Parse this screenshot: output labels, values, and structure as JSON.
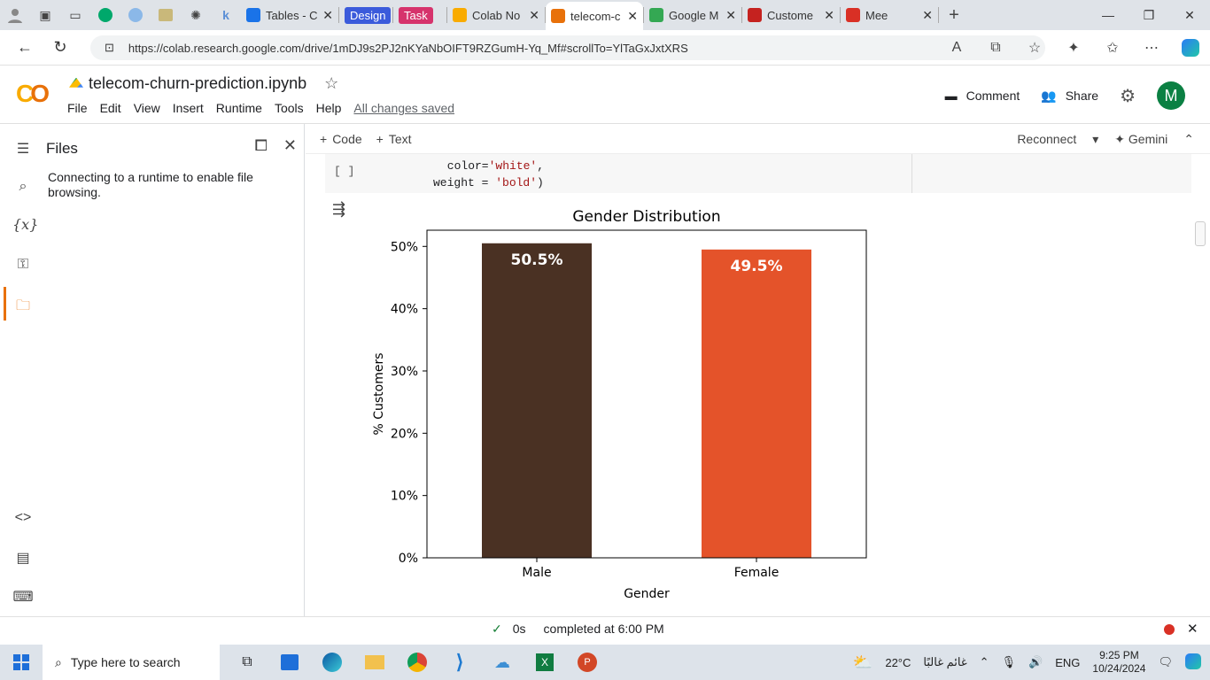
{
  "browser": {
    "tabs": [
      {
        "label": "Tables - C",
        "color": "#1a73e8"
      },
      {
        "label": "Design",
        "pill": true,
        "color": "#3b5bdb"
      },
      {
        "label": "Task",
        "pill": true,
        "color": "#d6336c"
      },
      {
        "label": "Colab No",
        "color": "#f9ab00"
      },
      {
        "label": "telecom-c",
        "color": "#e8710a",
        "active": true
      },
      {
        "label": "Google M",
        "color": "#34a853"
      },
      {
        "label": "Custome",
        "color": "#c5221f"
      },
      {
        "label": "Mee",
        "color": "#d93025"
      }
    ],
    "url": "https://colab.research.google.com/drive/1mDJ9s2PJ2nKYaNbOIFT9RZGumH-Yq_Mf#scrollTo=YlTaGxJxtXRS"
  },
  "colab": {
    "title": "telecom-churn-prediction.ipynb",
    "menu": [
      "File",
      "Edit",
      "View",
      "Insert",
      "Runtime",
      "Tools",
      "Help"
    ],
    "saved": "All changes saved",
    "comment": "Comment",
    "share": "Share",
    "avatar": "M",
    "add_code": "Code",
    "add_text": "Text",
    "reconnect": "Reconnect",
    "gemini": "Gemini"
  },
  "files_panel": {
    "title": "Files",
    "message": "Connecting to a runtime to enable file browsing."
  },
  "cell": {
    "bracket": "[ ]",
    "line1_a": " color=",
    "line1_s": "'white'",
    "line1_b": ",",
    "line2_a": "weight = ",
    "line2_s": "'bold'",
    "line2_b": ")"
  },
  "chart_data": {
    "type": "bar",
    "title": "Gender Distribution",
    "xlabel": "Gender",
    "ylabel": "% Customers",
    "categories": [
      "Male",
      "Female"
    ],
    "values": [
      50.5,
      49.5
    ],
    "labels": [
      "50.5%",
      "49.5%"
    ],
    "colors": [
      "#4a3123",
      "#e4532a"
    ],
    "yticks": [
      "0%",
      "10%",
      "20%",
      "30%",
      "40%",
      "50%"
    ],
    "ylim": [
      0,
      52.6
    ],
    "grid": false
  },
  "status": {
    "duration": "0s",
    "text": "completed at 6:00 PM"
  },
  "taskbar": {
    "search": "Type here to search",
    "temp": "22°C",
    "weather": "غائم غالبًا",
    "lang": "ENG",
    "time": "9:25 PM",
    "date": "10/24/2024"
  }
}
